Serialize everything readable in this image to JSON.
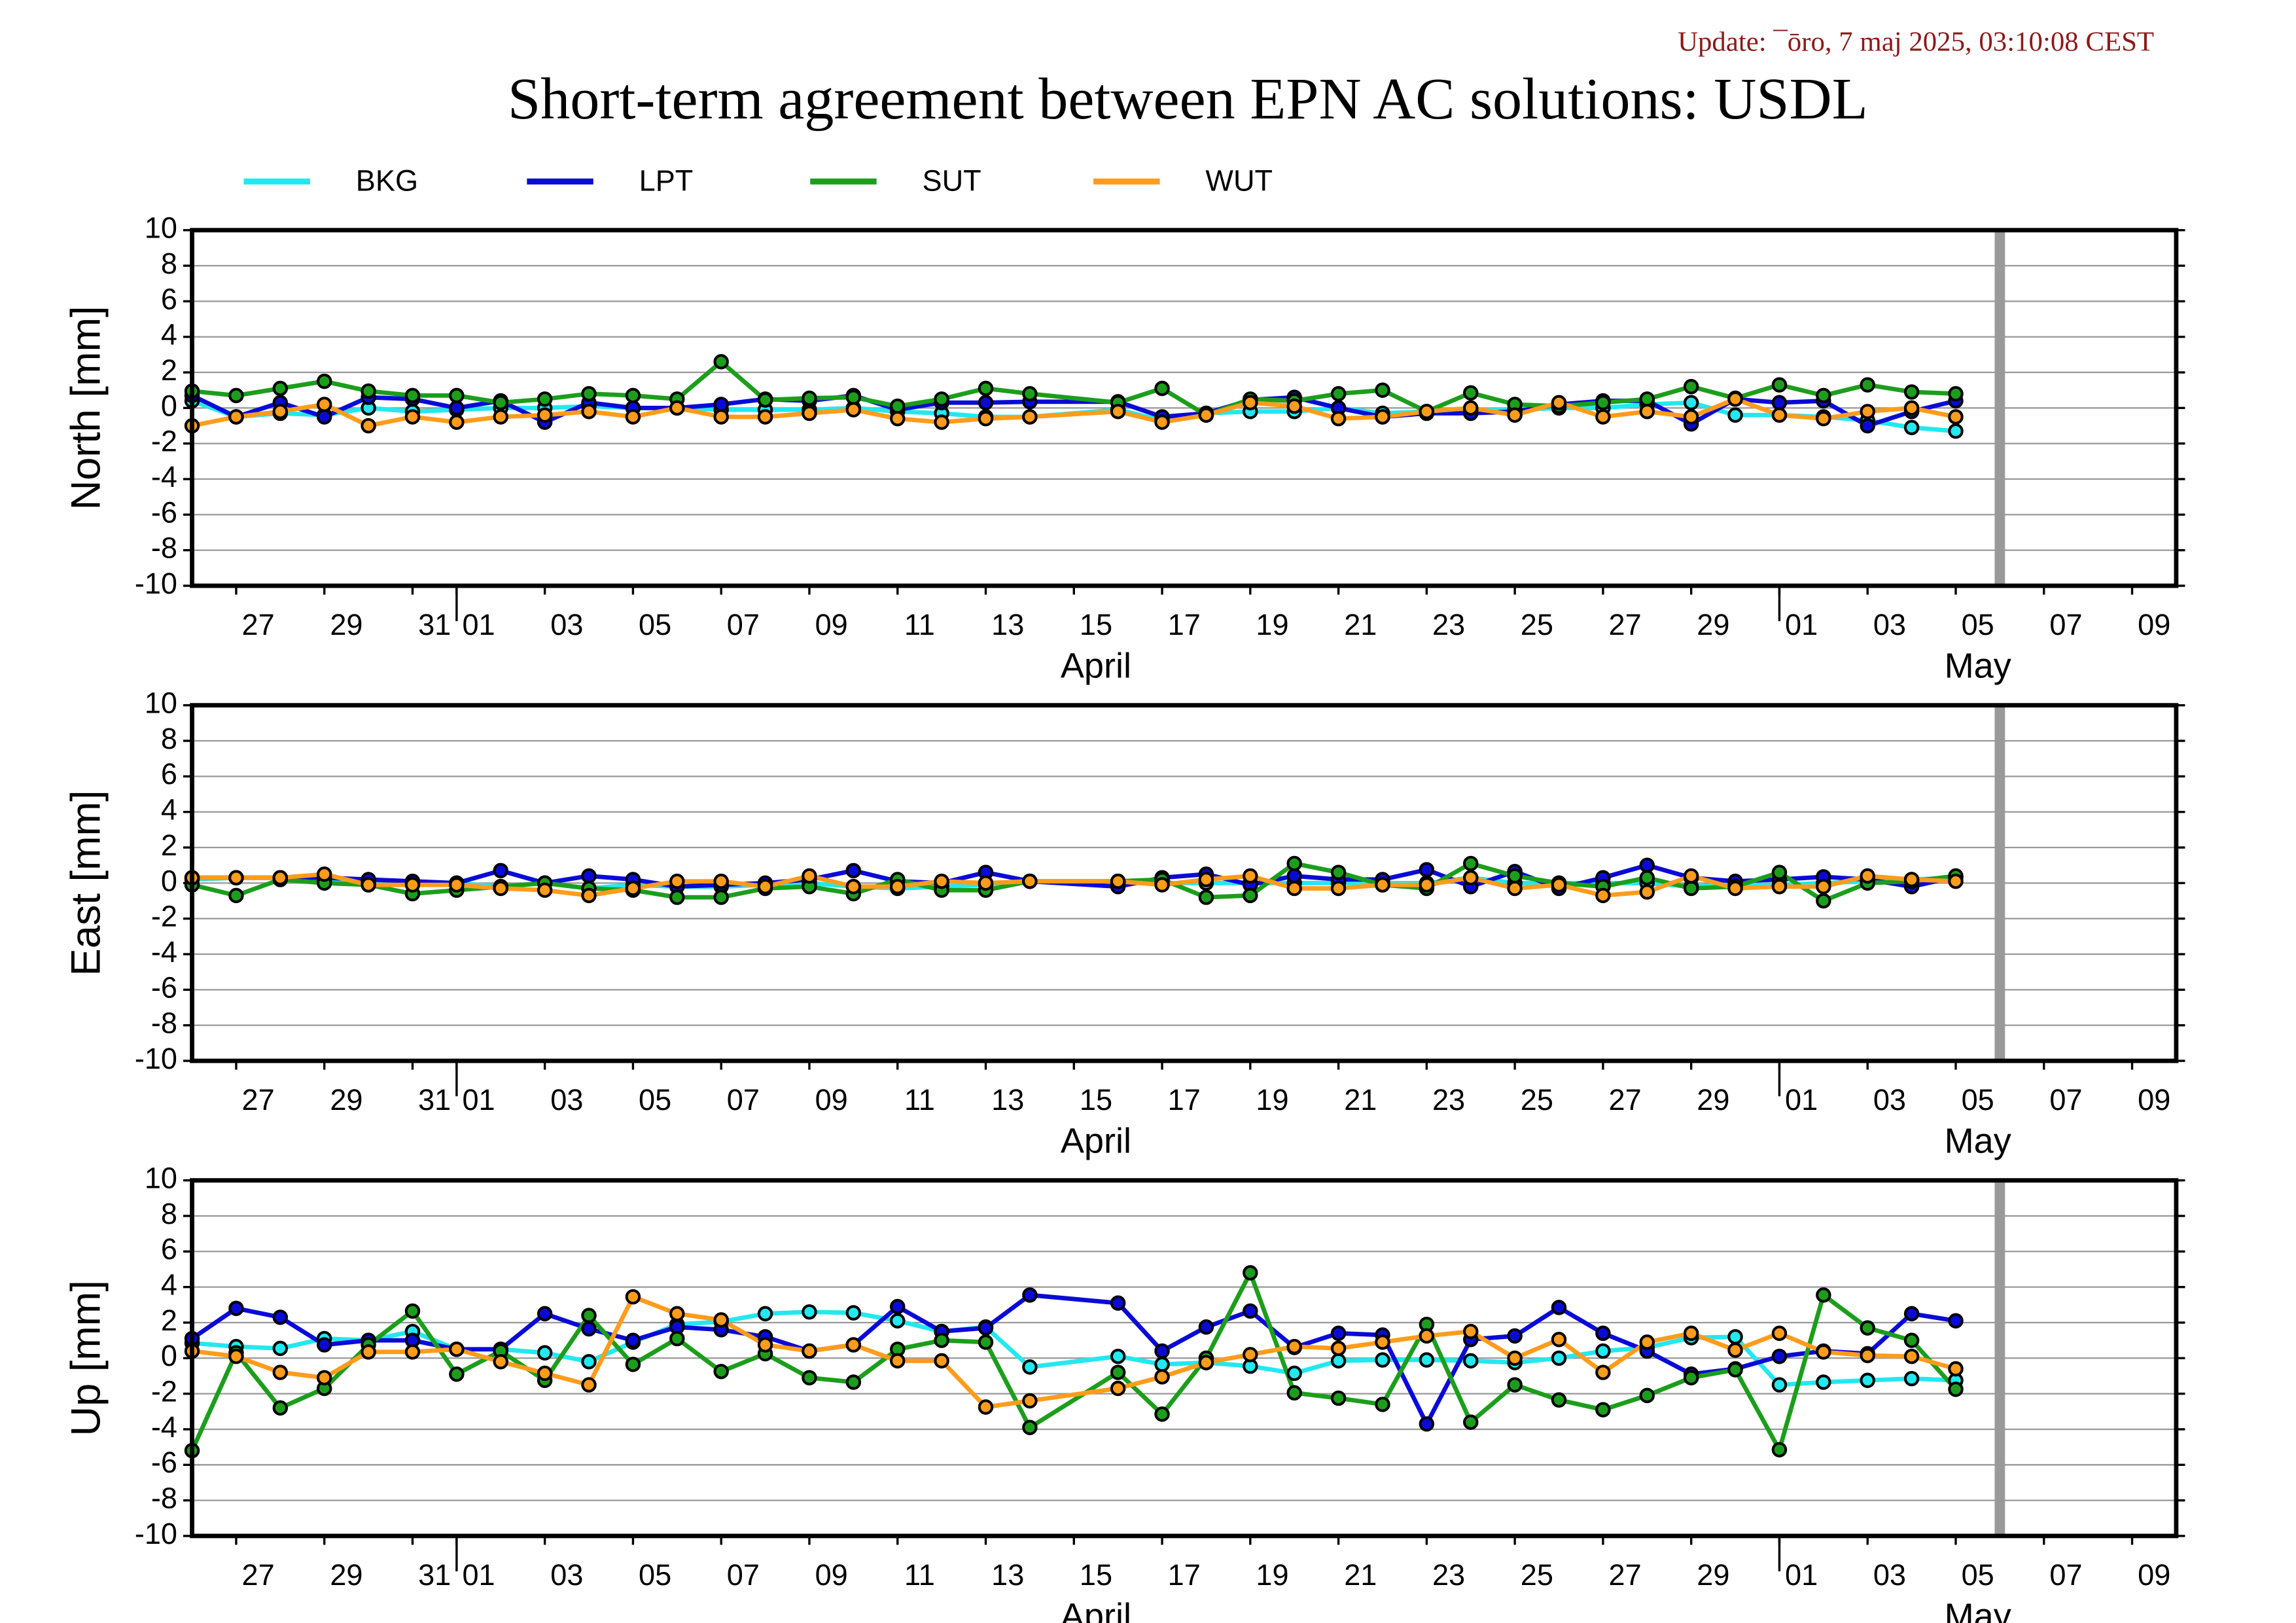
{
  "update": "Update: ¯ōro, 7 maj 2025, 03:10:08 CEST",
  "title": "Short-term agreement between EPN AC solutions: USDL",
  "chart_data": [
    {
      "type": "line",
      "ylabel": "North [mm]",
      "x": [
        "03-26",
        "03-27",
        "03-28",
        "03-29",
        "03-30",
        "03-31",
        "04-01",
        "04-02",
        "04-03",
        "04-04",
        "04-05",
        "04-06",
        "04-07",
        "04-08",
        "04-09",
        "04-10",
        "04-11",
        "04-12",
        "04-13",
        "04-14",
        "04-16",
        "04-17",
        "04-18",
        "04-19",
        "04-20",
        "04-21",
        "04-22",
        "04-23",
        "04-24",
        "04-25",
        "04-26",
        "04-27",
        "04-28",
        "04-29",
        "04-30",
        "05-01",
        "05-02",
        "05-03",
        "05-04",
        "05-05"
      ],
      "xlim": [
        "03-26",
        "05-10"
      ],
      "xticks": [
        {
          "value": "03-27",
          "label": "27"
        },
        {
          "value": "03-29",
          "label": "29"
        },
        {
          "value": "03-31",
          "label": "31"
        },
        {
          "value": "04-01",
          "label": "01"
        },
        {
          "value": "04-03",
          "label": "03"
        },
        {
          "value": "04-05",
          "label": "05"
        },
        {
          "value": "04-07",
          "label": "07"
        },
        {
          "value": "04-09",
          "label": "09"
        },
        {
          "value": "04-11",
          "label": "11"
        },
        {
          "value": "04-13",
          "label": "13"
        },
        {
          "value": "04-15",
          "label": "15"
        },
        {
          "value": "04-17",
          "label": "17"
        },
        {
          "value": "04-19",
          "label": "19"
        },
        {
          "value": "04-21",
          "label": "21"
        },
        {
          "value": "04-23",
          "label": "23"
        },
        {
          "value": "04-25",
          "label": "25"
        },
        {
          "value": "04-27",
          "label": "27"
        },
        {
          "value": "04-29",
          "label": "29"
        },
        {
          "value": "05-01",
          "label": "01"
        },
        {
          "value": "05-03",
          "label": "03"
        },
        {
          "value": "05-05",
          "label": "05"
        },
        {
          "value": "05-07",
          "label": "07"
        },
        {
          "value": "05-09",
          "label": "09"
        }
      ],
      "months": [
        {
          "text": "April",
          "x": "04-15"
        },
        {
          "text": "May",
          "x": "05-05"
        }
      ],
      "vline": "05-06",
      "ylim": [
        -10,
        10
      ],
      "yticks": [
        -10,
        -8,
        -6,
        -4,
        -2,
        0,
        2,
        4,
        6,
        8,
        10
      ],
      "grid": true,
      "series": [
        {
          "name": "BKG",
          "color": "#22e8f0",
          "values": [
            0.4,
            -0.5,
            -0.3,
            -0.4,
            0,
            -0.2,
            -0.1,
            0,
            0,
            0.1,
            0,
            0,
            -0.1,
            -0.1,
            -0.1,
            0,
            -0.2,
            -0.3,
            -0.5,
            -0.5,
            -0.1,
            -0.7,
            -0.3,
            -0.2,
            -0.2,
            0,
            -0.3,
            -0.2,
            -0.1,
            -0.1,
            0,
            0,
            0.2,
            0.3,
            -0.4,
            -0.4,
            -0.5,
            -0.7,
            -1.1,
            -1.3
          ]
        },
        {
          "name": "LPT",
          "color": "#0a0ad8",
          "values": [
            0.7,
            -0.5,
            0.3,
            -0.5,
            0.6,
            0.5,
            0,
            0.4,
            -0.8,
            0.3,
            0,
            0,
            0.2,
            0.5,
            0.4,
            0.7,
            -0.1,
            0.3,
            0.3,
            0.35,
            0.35,
            -0.5,
            -0.3,
            0.45,
            0.6,
            0,
            -0.5,
            -0.3,
            -0.3,
            -0.2,
            0.2,
            0.4,
            0.4,
            -0.9,
            0.5,
            0.3,
            0.4,
            -1.0,
            -0.2,
            0.4
          ]
        },
        {
          "name": "SUT",
          "color": "#1c9e1c",
          "values": [
            0.95,
            0.7,
            1.1,
            1.5,
            0.95,
            0.7,
            0.7,
            0.3,
            0.5,
            0.8,
            0.7,
            0.5,
            2.6,
            0.45,
            0.55,
            0.6,
            0.1,
            0.5,
            1.1,
            0.8,
            0.3,
            1.1,
            -0.4,
            0.5,
            0.4,
            0.8,
            1.0,
            -0.2,
            0.85,
            0.2,
            0.1,
            0.3,
            0.5,
            1.2,
            0.55,
            1.3,
            0.7,
            1.3,
            0.9,
            0.8
          ]
        },
        {
          "name": "WUT",
          "color": "#ff9c1c",
          "values": [
            -1.0,
            -0.5,
            -0.2,
            0.2,
            -1.0,
            -0.5,
            -0.8,
            -0.5,
            -0.4,
            -0.2,
            -0.5,
            0,
            -0.5,
            -0.5,
            -0.3,
            -0.1,
            -0.6,
            -0.8,
            -0.6,
            -0.5,
            -0.2,
            -0.8,
            -0.4,
            0.3,
            0.1,
            -0.6,
            -0.5,
            -0.2,
            0,
            -0.4,
            0.3,
            -0.5,
            -0.2,
            -0.5,
            0.5,
            -0.4,
            -0.6,
            -0.2,
            0,
            -0.5
          ]
        }
      ]
    },
    {
      "type": "line",
      "ylabel": "East [mm]",
      "x": [
        "03-26",
        "03-27",
        "03-28",
        "03-29",
        "03-30",
        "03-31",
        "04-01",
        "04-02",
        "04-03",
        "04-04",
        "04-05",
        "04-06",
        "04-07",
        "04-08",
        "04-09",
        "04-10",
        "04-11",
        "04-12",
        "04-13",
        "04-14",
        "04-16",
        "04-17",
        "04-18",
        "04-19",
        "04-20",
        "04-21",
        "04-22",
        "04-23",
        "04-24",
        "04-25",
        "04-26",
        "04-27",
        "04-28",
        "04-29",
        "04-30",
        "05-01",
        "05-02",
        "05-03",
        "05-04",
        "05-05"
      ],
      "xlim": [
        "03-26",
        "05-10"
      ],
      "xticks": [
        {
          "value": "03-27",
          "label": "27"
        },
        {
          "value": "03-29",
          "label": "29"
        },
        {
          "value": "03-31",
          "label": "31"
        },
        {
          "value": "04-01",
          "label": "01"
        },
        {
          "value": "04-03",
          "label": "03"
        },
        {
          "value": "04-05",
          "label": "05"
        },
        {
          "value": "04-07",
          "label": "07"
        },
        {
          "value": "04-09",
          "label": "09"
        },
        {
          "value": "04-11",
          "label": "11"
        },
        {
          "value": "04-13",
          "label": "13"
        },
        {
          "value": "04-15",
          "label": "15"
        },
        {
          "value": "04-17",
          "label": "17"
        },
        {
          "value": "04-19",
          "label": "19"
        },
        {
          "value": "04-21",
          "label": "21"
        },
        {
          "value": "04-23",
          "label": "23"
        },
        {
          "value": "04-25",
          "label": "25"
        },
        {
          "value": "04-27",
          "label": "27"
        },
        {
          "value": "04-29",
          "label": "29"
        },
        {
          "value": "05-01",
          "label": "01"
        },
        {
          "value": "05-03",
          "label": "03"
        },
        {
          "value": "05-05",
          "label": "05"
        },
        {
          "value": "05-07",
          "label": "07"
        },
        {
          "value": "05-09",
          "label": "09"
        }
      ],
      "months": [
        {
          "text": "April",
          "x": "04-15"
        },
        {
          "text": "May",
          "x": "05-05"
        }
      ],
      "vline": "05-06",
      "ylim": [
        -10,
        10
      ],
      "yticks": [
        -10,
        -8,
        -6,
        -4,
        -2,
        0,
        2,
        4,
        6,
        8,
        10
      ],
      "grid": true,
      "series": [
        {
          "name": "BKG",
          "color": "#22e8f0",
          "values": [
            0.2,
            0.3,
            0.3,
            0.2,
            0.1,
            0,
            0,
            -0.2,
            0,
            -0.3,
            -0.1,
            -0.2,
            -0.2,
            -0.1,
            0,
            -0.2,
            -0.3,
            -0.2,
            -0.1,
            0.1,
            0,
            0,
            0,
            0,
            0,
            0,
            0,
            0,
            0.3,
            0,
            0,
            0,
            0,
            -0.2,
            -0.1,
            -0.1,
            0,
            0.1,
            0.2,
            0.3
          ]
        },
        {
          "name": "LPT",
          "color": "#0a0ad8",
          "values": [
            0.3,
            0.3,
            0.3,
            0.3,
            0.2,
            0.1,
            0,
            0.7,
            0,
            0.4,
            0.2,
            -0.2,
            -0.1,
            0,
            0.2,
            0.7,
            0.1,
            0,
            0.6,
            0.1,
            -0.2,
            0.3,
            0.5,
            -0.1,
            0.4,
            0.2,
            0.2,
            0.75,
            -0.2,
            0.65,
            -0.3,
            0.3,
            1.0,
            0.3,
            0.1,
            0.2,
            0.35,
            0.2,
            -0.2,
            0.35
          ]
        },
        {
          "name": "SUT",
          "color": "#1c9e1c",
          "values": [
            -0.1,
            -0.7,
            0.2,
            0,
            -0.1,
            -0.6,
            -0.4,
            -0.2,
            0,
            -0.3,
            -0.4,
            -0.8,
            -0.8,
            -0.3,
            -0.2,
            -0.6,
            0.2,
            -0.4,
            -0.4,
            0.1,
            0.1,
            0.2,
            -0.8,
            -0.7,
            1.1,
            0.6,
            -0.1,
            -0.3,
            1.1,
            0.4,
            0,
            -0.2,
            0.3,
            -0.3,
            -0.2,
            0.6,
            -1.0,
            0,
            0.1,
            0.4
          ]
        },
        {
          "name": "WUT",
          "color": "#ff9c1c",
          "values": [
            0.3,
            0.3,
            0.3,
            0.5,
            -0.1,
            -0.1,
            -0.1,
            -0.3,
            -0.4,
            -0.7,
            -0.3,
            0.1,
            0.1,
            -0.2,
            0.4,
            -0.2,
            -0.2,
            0.1,
            0,
            0.1,
            0.1,
            -0.1,
            0.2,
            0.4,
            -0.3,
            -0.3,
            -0.1,
            -0.1,
            0.3,
            -0.3,
            -0.1,
            -0.7,
            -0.5,
            0.4,
            -0.3,
            -0.2,
            -0.2,
            0.4,
            0.2,
            0.1
          ]
        }
      ]
    },
    {
      "type": "line",
      "ylabel": "Up [mm]",
      "x": [
        "03-26",
        "03-27",
        "03-28",
        "03-29",
        "03-30",
        "03-31",
        "04-01",
        "04-02",
        "04-03",
        "04-04",
        "04-05",
        "04-06",
        "04-07",
        "04-08",
        "04-09",
        "04-10",
        "04-11",
        "04-12",
        "04-13",
        "04-14",
        "04-16",
        "04-17",
        "04-18",
        "04-19",
        "04-20",
        "04-21",
        "04-22",
        "04-23",
        "04-24",
        "04-25",
        "04-26",
        "04-27",
        "04-28",
        "04-29",
        "04-30",
        "05-01",
        "05-02",
        "05-03",
        "05-04",
        "05-05"
      ],
      "xlim": [
        "03-26",
        "05-10"
      ],
      "xticks": [
        {
          "value": "03-27",
          "label": "27"
        },
        {
          "value": "03-29",
          "label": "29"
        },
        {
          "value": "03-31",
          "label": "31"
        },
        {
          "value": "04-01",
          "label": "01"
        },
        {
          "value": "04-03",
          "label": "03"
        },
        {
          "value": "04-05",
          "label": "05"
        },
        {
          "value": "04-07",
          "label": "07"
        },
        {
          "value": "04-09",
          "label": "09"
        },
        {
          "value": "04-11",
          "label": "11"
        },
        {
          "value": "04-13",
          "label": "13"
        },
        {
          "value": "04-15",
          "label": "15"
        },
        {
          "value": "04-17",
          "label": "17"
        },
        {
          "value": "04-19",
          "label": "19"
        },
        {
          "value": "04-21",
          "label": "21"
        },
        {
          "value": "04-23",
          "label": "23"
        },
        {
          "value": "04-25",
          "label": "25"
        },
        {
          "value": "04-27",
          "label": "27"
        },
        {
          "value": "04-29",
          "label": "29"
        },
        {
          "value": "05-01",
          "label": "01"
        },
        {
          "value": "05-03",
          "label": "03"
        },
        {
          "value": "05-05",
          "label": "05"
        },
        {
          "value": "05-07",
          "label": "07"
        },
        {
          "value": "05-09",
          "label": "09"
        }
      ],
      "months": [
        {
          "text": "April",
          "x": "04-15"
        },
        {
          "text": "May",
          "x": "05-05"
        }
      ],
      "vline": "05-06",
      "ylim": [
        -10,
        10
      ],
      "yticks": [
        -10,
        -8,
        -6,
        -4,
        -2,
        0,
        2,
        4,
        6,
        8,
        10
      ],
      "grid": true,
      "series": [
        {
          "name": "BKG",
          "color": "#22e8f0",
          "values": [
            0.85,
            0.65,
            0.55,
            1.1,
            1.0,
            1.5,
            0.5,
            0.5,
            0.3,
            -0.2,
            0.9,
            1.9,
            2.05,
            2.5,
            2.6,
            2.55,
            2.1,
            1.5,
            1.75,
            -0.5,
            0.1,
            -0.35,
            -0.25,
            -0.45,
            -0.85,
            -0.15,
            -0.1,
            -0.1,
            -0.15,
            -0.25,
            0,
            0.4,
            0.6,
            1.15,
            1.2,
            -1.5,
            -1.35,
            -1.25,
            -1.15,
            -1.25
          ]
        },
        {
          "name": "LPT",
          "color": "#0a0ad8",
          "values": [
            1.1,
            2.8,
            2.3,
            0.75,
            1.0,
            1.0,
            0.5,
            0.5,
            2.5,
            1.65,
            1.0,
            1.75,
            1.6,
            1.2,
            0.4,
            0.75,
            2.9,
            1.5,
            1.7,
            3.55,
            3.1,
            0.4,
            1.75,
            2.65,
            0.6,
            1.4,
            1.3,
            -3.7,
            1.05,
            1.25,
            2.85,
            1.4,
            0.4,
            -0.9,
            -0.6,
            0.1,
            0.4,
            0.25,
            2.5,
            2.1
          ]
        },
        {
          "name": "SUT",
          "color": "#1c9e1c",
          "values": [
            -5.2,
            0.3,
            -2.8,
            -1.7,
            0.75,
            2.65,
            -0.9,
            0.4,
            -1.25,
            2.4,
            -0.35,
            1.1,
            -0.75,
            0.25,
            -1.1,
            -1.35,
            0.5,
            1.0,
            0.9,
            -3.9,
            -0.8,
            -3.15,
            0,
            4.8,
            -1.95,
            -2.25,
            -2.6,
            1.9,
            -3.6,
            -1.5,
            -2.35,
            -2.9,
            -2.1,
            -1.1,
            -0.65,
            -5.15,
            3.55,
            1.7,
            1.0,
            -1.75
          ]
        },
        {
          "name": "WUT",
          "color": "#ff9c1c",
          "values": [
            0.4,
            0.1,
            -0.8,
            -1.1,
            0.35,
            0.35,
            0.5,
            -0.2,
            -0.85,
            -1.5,
            3.45,
            2.5,
            2.15,
            0.75,
            0.4,
            0.75,
            -0.15,
            -0.15,
            -2.75,
            -2.4,
            -1.7,
            -1.05,
            -0.25,
            0.2,
            0.65,
            0.55,
            0.9,
            1.25,
            1.5,
            0,
            1.05,
            -0.8,
            0.9,
            1.4,
            0.45,
            1.4,
            0.35,
            0.15,
            0.1,
            -0.6
          ]
        }
      ]
    }
  ]
}
